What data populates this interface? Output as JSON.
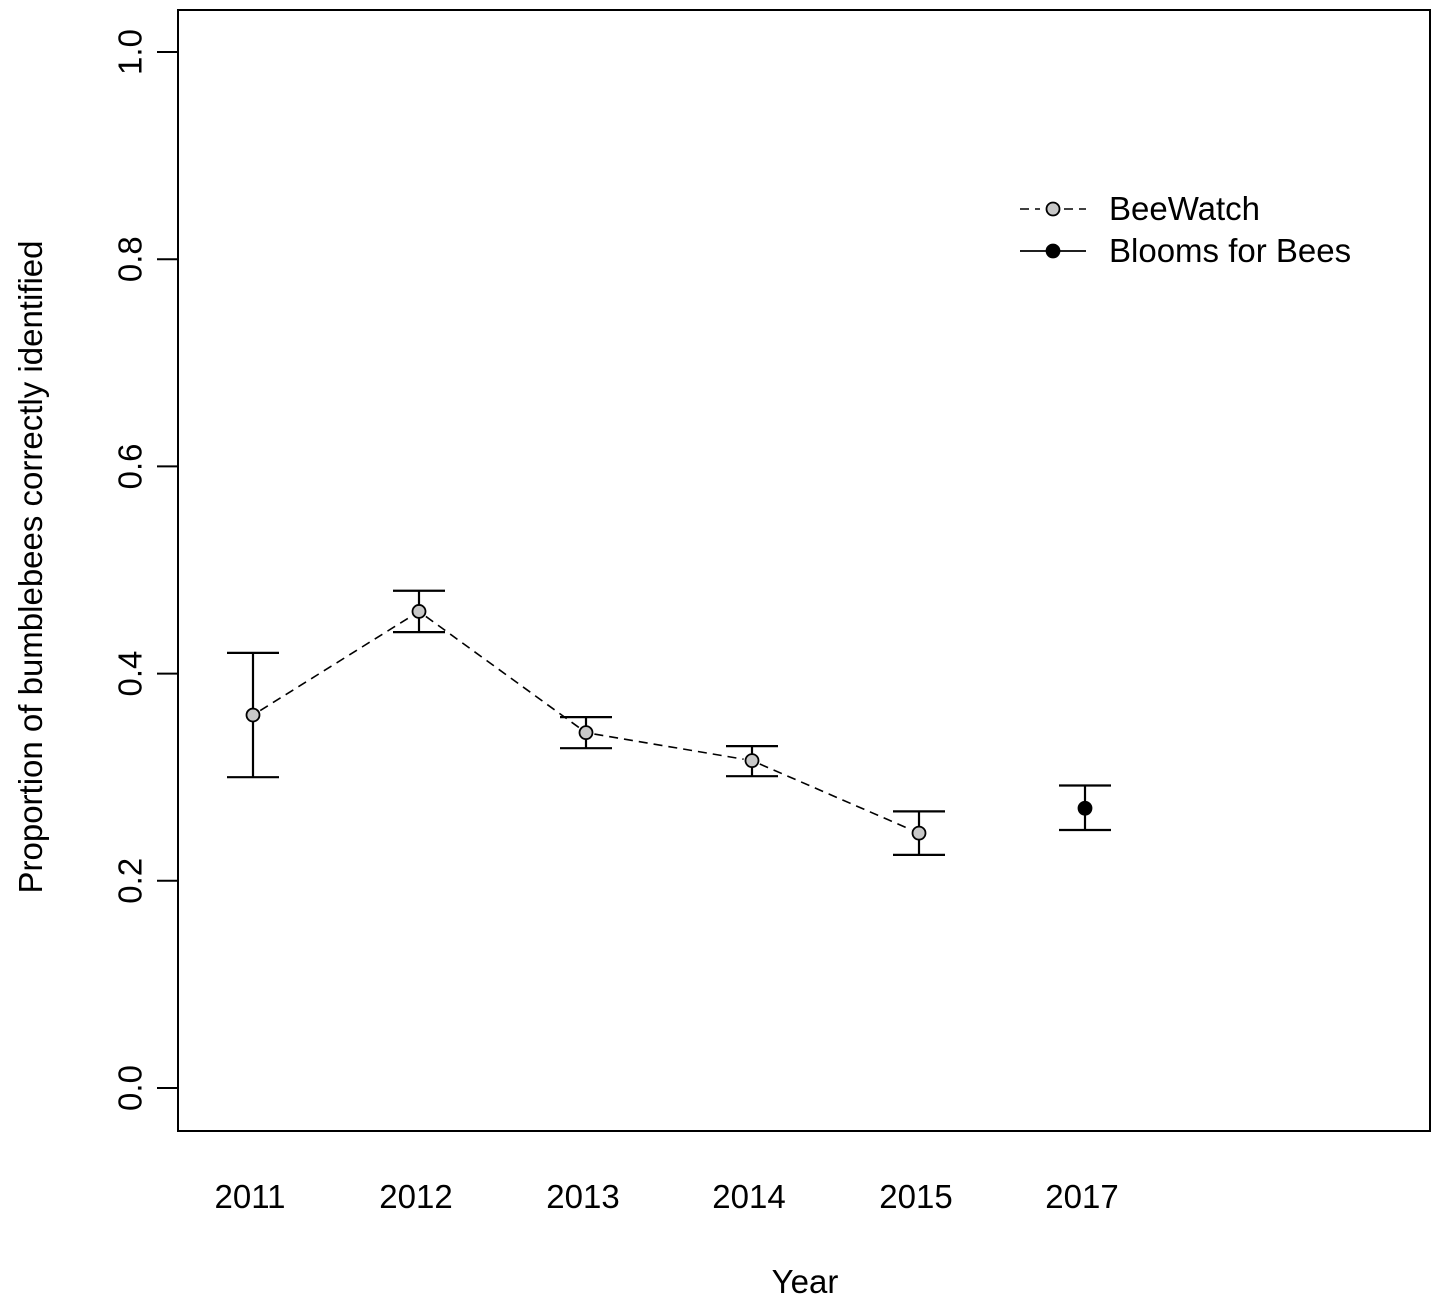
{
  "chart_data": {
    "type": "scatter",
    "xlabel": "Year",
    "ylabel": "Proportion of bumblebees correctly identified",
    "ylim": [
      0,
      1
    ],
    "yticks": [
      "0.0",
      "0.2",
      "0.4",
      "0.6",
      "0.8",
      "1.0"
    ],
    "categories": [
      "2011",
      "2012",
      "2013",
      "2014",
      "2015",
      "2017"
    ],
    "grid": false,
    "legend_position": "top-right",
    "series": [
      {
        "name": "BeeWatch",
        "line": "dashed",
        "marker_color": "#c8c8c8",
        "points": [
          {
            "x": "2011",
            "y": 0.36,
            "lower": 0.3,
            "upper": 0.42
          },
          {
            "x": "2012",
            "y": 0.46,
            "lower": 0.44,
            "upper": 0.48
          },
          {
            "x": "2013",
            "y": 0.343,
            "lower": 0.328,
            "upper": 0.358
          },
          {
            "x": "2014",
            "y": 0.316,
            "lower": 0.301,
            "upper": 0.33
          },
          {
            "x": "2015",
            "y": 0.246,
            "lower": 0.225,
            "upper": 0.267
          }
        ]
      },
      {
        "name": "Blooms for Bees",
        "line": "solid",
        "marker_color": "#000000",
        "points": [
          {
            "x": "2017",
            "y": 0.27,
            "lower": 0.249,
            "upper": 0.292
          }
        ]
      }
    ]
  }
}
